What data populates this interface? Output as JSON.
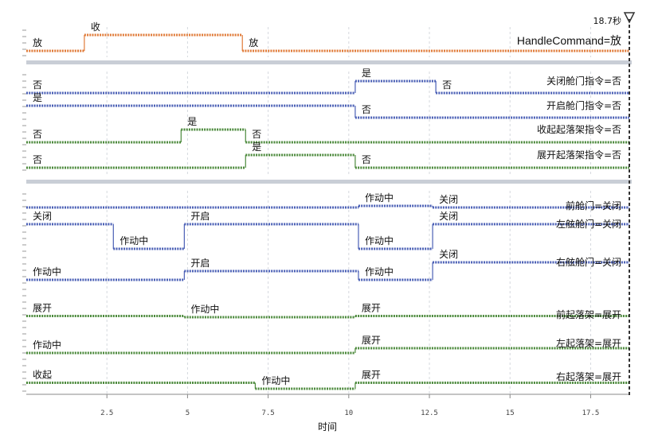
{
  "chart_data": {
    "type": "line",
    "subtype": "timing-diagram",
    "xlabel": "时间",
    "x_ticks": [
      2.5,
      5,
      7.5,
      10,
      12.5,
      15,
      17.5
    ],
    "xlim": [
      0,
      18.7
    ],
    "cursor": {
      "x": 18.7,
      "label": "18.7秒"
    },
    "colors": {
      "orange": "#e07b39",
      "blue": "#4a5fb5",
      "green": "#4c8a3c",
      "separator": "#c9ced6"
    },
    "panels": [
      {
        "series": [
          {
            "name": "HandleCommand",
            "color": "orange",
            "readout": "HandleCommand=放",
            "segments": [
              {
                "x0": 0,
                "x1": 1.8,
                "level": "low",
                "label": "放"
              },
              {
                "x0": 1.8,
                "x1": 6.7,
                "level": "high",
                "label": "收"
              },
              {
                "x0": 6.7,
                "x1": 18.7,
                "level": "low",
                "label": "放"
              }
            ]
          }
        ]
      },
      {
        "series": [
          {
            "name": "关闭舱门指令",
            "color": "blue",
            "readout": "关闭舱门指令=否",
            "segments": [
              {
                "x0": 0,
                "x1": 10.2,
                "level": "low",
                "label": "否"
              },
              {
                "x0": 10.2,
                "x1": 12.7,
                "level": "high",
                "label": "是"
              },
              {
                "x0": 12.7,
                "x1": 18.7,
                "level": "low",
                "label": "否"
              }
            ]
          },
          {
            "name": "开启舱门指令",
            "color": "blue",
            "readout": "开启舱门指令=否",
            "segments": [
              {
                "x0": 0,
                "x1": 10.2,
                "level": "high",
                "label": "是"
              },
              {
                "x0": 10.2,
                "x1": 18.7,
                "level": "low",
                "label": "否"
              }
            ]
          },
          {
            "name": "收起起落架指令",
            "color": "green",
            "readout": "收起起落架指令=否",
            "segments": [
              {
                "x0": 0,
                "x1": 4.8,
                "level": "low",
                "label": "否"
              },
              {
                "x0": 4.8,
                "x1": 6.8,
                "level": "high",
                "label": "是"
              },
              {
                "x0": 6.8,
                "x1": 18.7,
                "level": "low",
                "label": "否"
              }
            ]
          },
          {
            "name": "展开起落架指令",
            "color": "green",
            "readout": "展开起落架指令=否",
            "segments": [
              {
                "x0": 0,
                "x1": 6.8,
                "level": "low",
                "label": "否"
              },
              {
                "x0": 6.8,
                "x1": 10.2,
                "level": "high",
                "label": "是"
              },
              {
                "x0": 10.2,
                "x1": 18.7,
                "level": "low",
                "label": "否"
              }
            ]
          }
        ]
      },
      {
        "series": [
          {
            "name": "前舱门",
            "color": "blue",
            "readout": "前舱门=关闭",
            "segments": [
              {
                "x0": 0,
                "x1": 10.3,
                "level": "low",
                "label": ""
              },
              {
                "x0": 10.3,
                "x1": 12.6,
                "level": "high",
                "label": "作动中"
              },
              {
                "x0": 12.6,
                "x1": 18.7,
                "level": "low",
                "label": "关闭"
              }
            ]
          },
          {
            "name": "左舷舱门",
            "color": "blue",
            "readout": "左舷舱门=关闭",
            "segments": [
              {
                "x0": 0,
                "x1": 2.7,
                "level": "high",
                "label": "关闭"
              },
              {
                "x0": 2.7,
                "x1": 4.9,
                "level": "low",
                "label": "作动中"
              },
              {
                "x0": 4.9,
                "x1": 10.3,
                "level": "high",
                "label": "开启"
              },
              {
                "x0": 10.3,
                "x1": 12.6,
                "level": "low",
                "label": "作动中"
              },
              {
                "x0": 12.6,
                "x1": 18.7,
                "level": "high",
                "label": "关闭"
              }
            ]
          },
          {
            "name": "右舷舱门",
            "color": "blue",
            "readout": "右舷舱门=关闭",
            "segments": [
              {
                "x0": 0,
                "x1": 4.9,
                "level": "low",
                "label": "作动中"
              },
              {
                "x0": 4.9,
                "x1": 10.3,
                "level": "mid",
                "label": "开启"
              },
              {
                "x0": 10.3,
                "x1": 12.6,
                "level": "low",
                "label": "作动中"
              },
              {
                "x0": 12.6,
                "x1": 18.7,
                "level": "high",
                "label": "关闭"
              }
            ]
          },
          {
            "name": "前起落架",
            "color": "green",
            "readout": "前起落架=展开",
            "segments": [
              {
                "x0": 0,
                "x1": 4.9,
                "level": "mid",
                "label": "展开"
              },
              {
                "x0": 4.9,
                "x1": 10.2,
                "level": "low",
                "label": "作动中"
              },
              {
                "x0": 10.2,
                "x1": 18.7,
                "level": "mid",
                "label": "展开"
              }
            ]
          },
          {
            "name": "左起落架",
            "color": "green",
            "readout": "左起落架=展开",
            "segments": [
              {
                "x0": 0,
                "x1": 10.2,
                "level": "low",
                "label": "作动中"
              },
              {
                "x0": 10.2,
                "x1": 18.7,
                "level": "mid",
                "label": "展开"
              }
            ]
          },
          {
            "name": "右起落架",
            "color": "green",
            "readout": "右起落架=展开",
            "segments": [
              {
                "x0": 0,
                "x1": 7.1,
                "level": "mid",
                "label": "收起"
              },
              {
                "x0": 7.1,
                "x1": 10.2,
                "level": "low",
                "label": "作动中"
              },
              {
                "x0": 10.2,
                "x1": 18.7,
                "level": "mid",
                "label": "展开"
              }
            ]
          }
        ]
      }
    ]
  }
}
